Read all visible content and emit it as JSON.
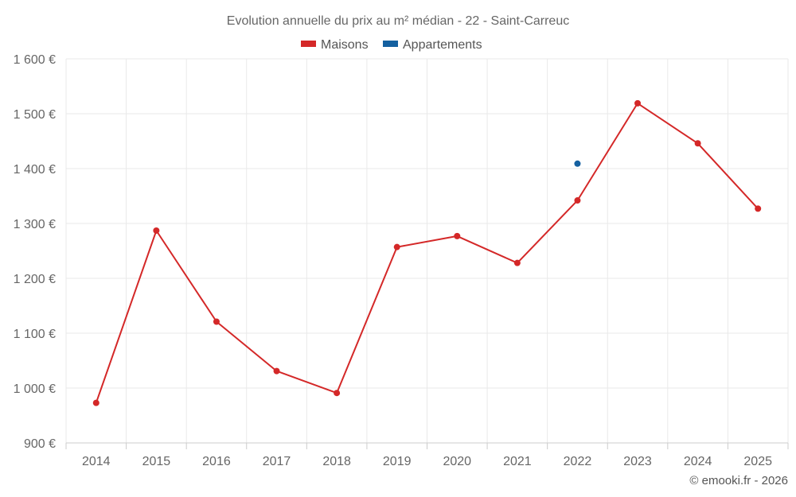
{
  "chart_data": {
    "type": "line",
    "title": "Evolution annuelle du prix au m² médian - 22 - Saint-Carreuc",
    "categories": [
      "2014",
      "2015",
      "2016",
      "2017",
      "2018",
      "2019",
      "2020",
      "2021",
      "2022",
      "2023",
      "2024",
      "2025"
    ],
    "series": [
      {
        "name": "Maisons",
        "color": "#d42828",
        "values": [
          973,
          1287,
          1121,
          1031,
          991,
          1257,
          1277,
          1228,
          1342,
          1519,
          1446,
          1327
        ]
      },
      {
        "name": "Appartements",
        "color": "#1460a0",
        "values": [
          null,
          null,
          null,
          null,
          null,
          null,
          null,
          null,
          1409,
          null,
          null,
          null
        ]
      }
    ],
    "y_ticks": [
      900,
      1000,
      1100,
      1200,
      1300,
      1400,
      1500,
      1600
    ],
    "y_tick_labels": [
      "900 €",
      "1 000 €",
      "1 100 €",
      "1 200 €",
      "1 300 €",
      "1 400 €",
      "1 500 €",
      "1 600 €"
    ],
    "ylim": [
      900,
      1600
    ],
    "grid": true,
    "legend": "top-center",
    "xlabel": "",
    "ylabel": ""
  },
  "credit": "© emooki.fr - 2026"
}
